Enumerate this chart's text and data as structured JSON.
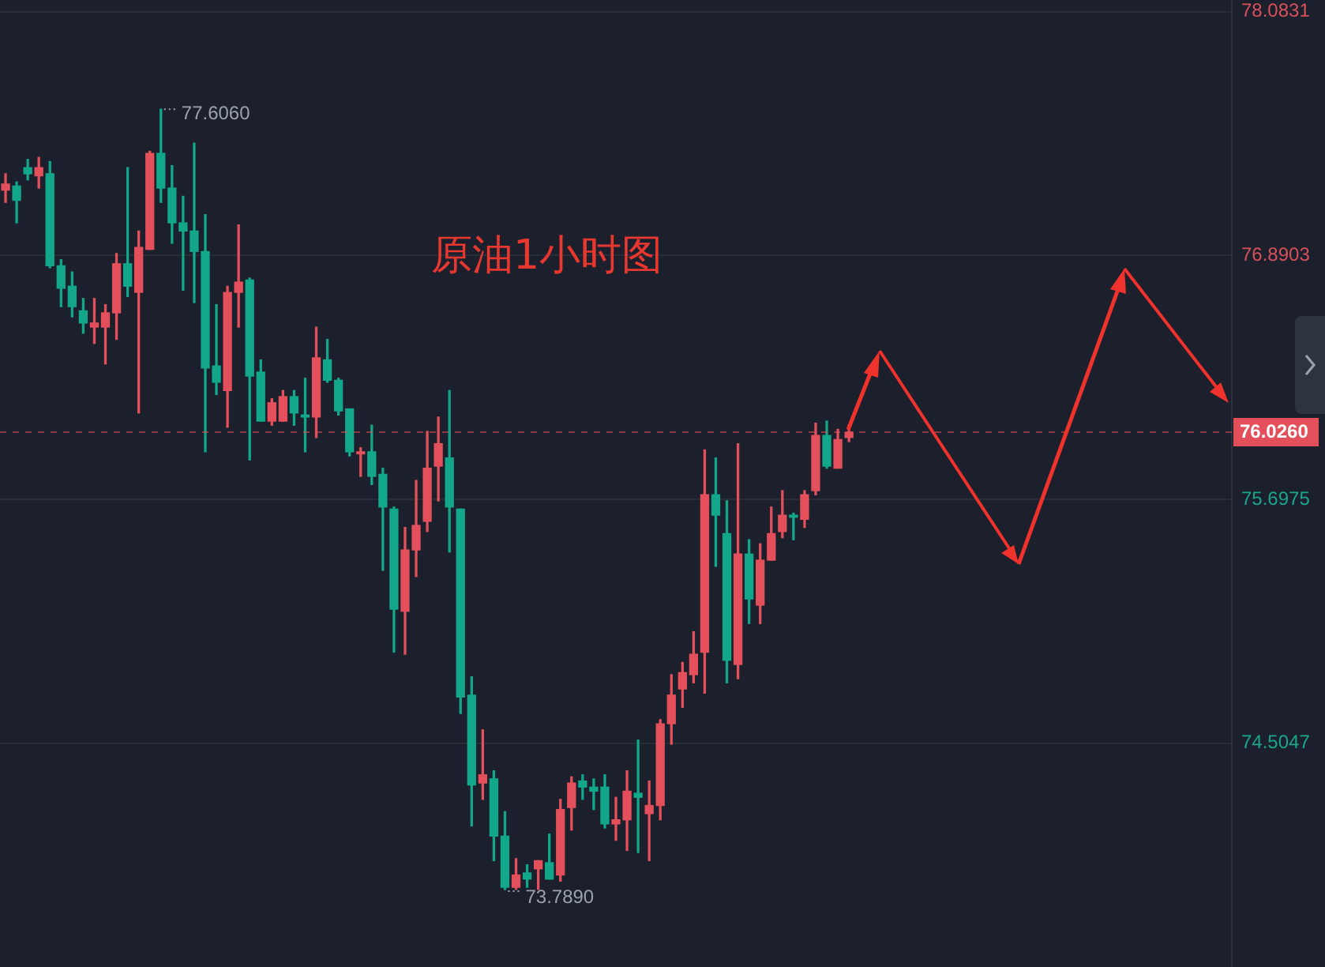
{
  "chart_data": {
    "type": "candlestick",
    "title": "原油1小时图",
    "categories": [
      null,
      null,
      null,
      null,
      null,
      null,
      null,
      null,
      null,
      null,
      null,
      null,
      null,
      null,
      null,
      null,
      null,
      null,
      null,
      null,
      null,
      null,
      null,
      null,
      null,
      null,
      null,
      null,
      null,
      null,
      null,
      null,
      null,
      null,
      null,
      null,
      null,
      null,
      null,
      null,
      null,
      null,
      null,
      null,
      null,
      null,
      null,
      null,
      null,
      null,
      null,
      null,
      null,
      null,
      null,
      null,
      null,
      null,
      null,
      null,
      null,
      null,
      null,
      null,
      null,
      null,
      null,
      null,
      null,
      null,
      null,
      null,
      null,
      null,
      null,
      null,
      null,
      null,
      null,
      null,
      null,
      null,
      null,
      null,
      null,
      null,
      null,
      null,
      null,
      null,
      null,
      null,
      null,
      null,
      null,
      null,
      null,
      null,
      null,
      null,
      null,
      null,
      null,
      null,
      null,
      null,
      null,
      null,
      null,
      null,
      null
    ],
    "ohlc": [
      [
        77.21,
        77.29,
        77.15,
        77.24
      ],
      [
        77.23,
        77.25,
        77.05,
        77.16
      ],
      [
        77.32,
        77.36,
        77.26,
        77.29
      ],
      [
        77.28,
        77.37,
        77.22,
        77.32
      ],
      [
        77.29,
        77.35,
        76.83,
        76.84
      ],
      [
        76.84,
        76.87,
        76.64,
        76.73
      ],
      [
        76.74,
        76.81,
        76.59,
        76.64
      ],
      [
        76.62,
        76.68,
        76.51,
        76.56
      ],
      [
        76.54,
        76.68,
        76.46,
        76.56
      ],
      [
        76.54,
        76.65,
        76.36,
        76.61
      ],
      [
        76.61,
        76.9,
        76.48,
        76.85
      ],
      [
        76.85,
        77.32,
        76.69,
        76.74
      ],
      [
        76.71,
        77.01,
        76.12,
        76.93
      ],
      [
        76.92,
        77.4,
        76.92,
        77.39
      ],
      [
        77.39,
        77.606,
        77.15,
        77.22
      ],
      [
        77.22,
        77.33,
        76.95,
        77.05
      ],
      [
        77.05,
        77.18,
        76.72,
        77.01
      ],
      [
        77.01,
        77.44,
        76.66,
        76.91
      ],
      [
        76.91,
        77.09,
        75.93,
        76.34
      ],
      [
        76.35,
        76.65,
        76.21,
        76.27
      ],
      [
        76.23,
        76.74,
        76.05,
        76.71
      ],
      [
        76.71,
        77.04,
        76.54,
        76.76
      ],
      [
        76.77,
        76.78,
        75.89,
        76.3
      ],
      [
        76.32,
        76.38,
        76.08,
        76.08
      ],
      [
        76.08,
        76.19,
        76.06,
        76.17
      ],
      [
        76.08,
        76.23,
        76.08,
        76.2
      ],
      [
        76.2,
        76.23,
        76.06,
        76.12
      ],
      [
        76.11,
        76.29,
        75.93,
        76.1
      ],
      [
        76.1,
        76.54,
        76.0,
        76.39
      ],
      [
        76.38,
        76.48,
        76.27,
        76.28
      ],
      [
        76.28,
        76.29,
        76.11,
        76.13
      ],
      [
        76.14,
        76.14,
        75.91,
        75.93
      ],
      [
        75.92,
        75.95,
        75.81,
        75.93
      ],
      [
        75.93,
        76.06,
        75.77,
        75.81
      ],
      [
        75.82,
        75.85,
        75.35,
        75.66
      ],
      [
        75.65,
        75.66,
        74.95,
        75.16
      ],
      [
        75.15,
        75.56,
        74.94,
        75.45
      ],
      [
        75.45,
        75.79,
        75.32,
        75.57
      ],
      [
        75.59,
        76.03,
        75.54,
        75.85
      ],
      [
        75.86,
        76.1,
        75.69,
        75.97
      ],
      [
        75.9,
        76.23,
        75.44,
        75.66
      ],
      [
        75.65,
        75.65,
        74.65,
        74.73
      ],
      [
        74.74,
        74.83,
        74.1,
        74.3
      ],
      [
        74.31,
        74.57,
        74.23,
        74.35
      ],
      [
        74.33,
        74.37,
        73.93,
        74.05
      ],
      [
        74.05,
        74.17,
        73.789,
        73.8
      ],
      [
        73.8,
        73.94,
        73.79,
        73.86
      ],
      [
        73.87,
        73.91,
        73.8,
        73.84
      ],
      [
        73.89,
        73.93,
        73.79,
        73.93
      ],
      [
        73.92,
        74.06,
        73.84,
        73.84
      ],
      [
        73.86,
        74.23,
        73.83,
        74.18
      ],
      [
        74.19,
        74.34,
        74.08,
        74.31
      ],
      [
        74.32,
        74.35,
        74.23,
        74.29
      ],
      [
        74.29,
        74.33,
        74.18,
        74.27
      ],
      [
        74.29,
        74.35,
        74.09,
        74.11
      ],
      [
        74.11,
        74.24,
        74.03,
        74.13
      ],
      [
        74.13,
        74.37,
        73.98,
        74.27
      ],
      [
        74.26,
        74.52,
        73.97,
        74.24
      ],
      [
        74.16,
        74.32,
        73.93,
        74.2
      ],
      [
        74.2,
        74.62,
        74.13,
        74.6
      ],
      [
        74.6,
        74.84,
        74.5,
        74.74
      ],
      [
        74.77,
        74.9,
        74.68,
        74.85
      ],
      [
        74.84,
        75.05,
        74.8,
        74.94
      ],
      [
        74.95,
        75.94,
        74.75,
        75.72
      ],
      [
        75.72,
        75.9,
        75.37,
        75.62
      ],
      [
        75.53,
        75.69,
        74.8,
        74.91
      ],
      [
        74.89,
        75.97,
        74.82,
        75.43
      ],
      [
        75.43,
        75.5,
        75.09,
        75.21
      ],
      [
        75.18,
        75.48,
        75.09,
        75.4
      ],
      [
        75.4,
        75.66,
        75.4,
        75.53
      ],
      [
        75.54,
        75.74,
        75.51,
        75.62
      ],
      [
        75.62,
        75.63,
        75.5,
        75.61
      ],
      [
        75.6,
        75.74,
        75.56,
        75.72
      ],
      [
        75.74,
        76.07,
        75.72,
        76.01
      ],
      [
        76.01,
        76.08,
        75.85,
        75.86
      ],
      [
        75.85,
        76.04,
        75.85,
        75.99
      ],
      [
        76.0,
        76.06,
        75.98,
        76.026
      ],
      null,
      null,
      null,
      null,
      null,
      null,
      null,
      null,
      null,
      null,
      null,
      null,
      null,
      null,
      null,
      null,
      null,
      null,
      null,
      null,
      null,
      null,
      null,
      null,
      null,
      null,
      null,
      null,
      null,
      null,
      null,
      null,
      null,
      null
    ],
    "colors": [
      "#e3505b",
      "#12a68a",
      "#12a68a",
      "#e3505b",
      "#12a68a",
      "#12a68a",
      "#12a68a",
      "#12a68a",
      "#e3505b",
      "#e3505b",
      "#e3505b",
      "#12a68a",
      "#e3505b",
      "#e3505b",
      "#12a68a",
      "#12a68a",
      "#12a68a",
      "#12a68a",
      "#12a68a",
      "#12a68a",
      "#e3505b",
      "#e3505b",
      "#12a68a",
      "#12a68a",
      "#e3505b",
      "#e3505b",
      "#12a68a",
      "#12a68a",
      "#e3505b",
      "#12a68a",
      "#12a68a",
      "#12a68a",
      "#e3505b",
      "#12a68a",
      "#12a68a",
      "#12a68a",
      "#e3505b",
      "#e3505b",
      "#e3505b",
      "#e3505b",
      "#12a68a",
      "#12a68a",
      "#12a68a",
      "#e3505b",
      "#12a68a",
      "#12a68a",
      "#e3505b",
      "#12a68a",
      "#e3505b",
      "#12a68a",
      "#e3505b",
      "#e3505b",
      "#12a68a",
      "#12a68a",
      "#12a68a",
      "#e3505b",
      "#e3505b",
      "#12a68a",
      "#e3505b",
      "#e3505b",
      "#e3505b",
      "#e3505b",
      "#e3505b",
      "#e3505b",
      "#12a68a",
      "#12a68a",
      "#e3505b",
      "#12a68a",
      "#e3505b",
      "#e3505b",
      "#e3505b",
      "#12a68a",
      "#e3505b",
      "#e3505b",
      "#12a68a",
      "#e3505b",
      "#e3505b",
      null,
      null,
      null,
      null,
      null,
      null,
      null,
      null,
      null,
      null,
      null,
      null,
      null,
      null,
      null,
      null,
      null,
      null,
      null,
      null,
      null,
      null,
      null,
      null,
      null,
      null,
      null,
      null,
      null,
      null,
      null,
      null,
      null,
      null
    ],
    "ylim": [
      73.41,
      78.14
    ],
    "yticks": [
      78.0831,
      76.8903,
      75.6975,
      74.5047
    ],
    "grid": "y",
    "tick_labels": "y",
    "ref_lines": [
      {
        "axis": "y",
        "value": 76.026,
        "label": "76.0260",
        "color": "#e3505b",
        "line_style": "dashed"
      }
    ],
    "annotations": [
      "77.6060",
      "73.7890"
    ]
  }
}
